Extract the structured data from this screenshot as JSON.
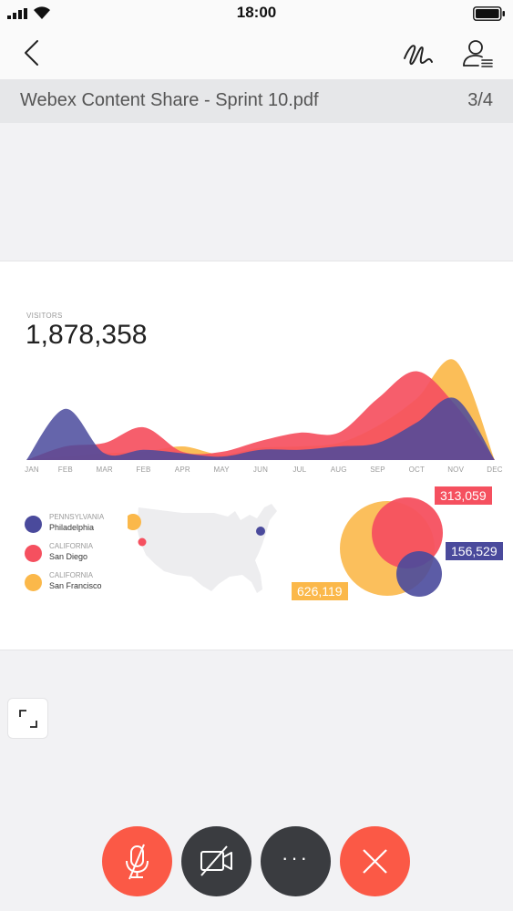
{
  "status_bar": {
    "time": "18:00"
  },
  "document": {
    "title": "Webex Content Share - Sprint 10.pdf",
    "page": "3/4"
  },
  "slide": {
    "visitors_label": "VISITORS",
    "visitors_value": "1,878,358",
    "legend": [
      {
        "state": "PENNSYLVANIA",
        "city": "Philadelphia",
        "color": "#4a4a9c"
      },
      {
        "state": "CALIFORNIA",
        "city": "San Diego",
        "color": "#f5505f"
      },
      {
        "state": "CALIFORNIA",
        "city": "San Francisco",
        "color": "#fbb84a"
      }
    ],
    "bubble_values": {
      "red": "313,059",
      "blue": "156,529",
      "orange": "626,119"
    }
  },
  "chart_data": {
    "type": "area",
    "categories": [
      "JAN",
      "FEB",
      "MAR",
      "FEB",
      "APR",
      "MAY",
      "JUN",
      "JUL",
      "AUG",
      "SEP",
      "OCT",
      "NOV",
      "DEC"
    ],
    "series": [
      {
        "color": "#fbb84a",
        "values": [
          0,
          5,
          10,
          12,
          20,
          8,
          18,
          20,
          25,
          50,
          90,
          145,
          0
        ]
      },
      {
        "color": "#f5505f",
        "values": [
          0,
          20,
          25,
          48,
          12,
          12,
          28,
          40,
          40,
          90,
          130,
          80,
          0
        ]
      },
      {
        "color": "#4a4a9c",
        "values": [
          0,
          75,
          10,
          15,
          10,
          5,
          15,
          15,
          20,
          25,
          55,
          90,
          0
        ]
      }
    ],
    "colors": {
      "orange": "#fbb84a",
      "red": "#f5505f",
      "blue": "#4a4a9c"
    }
  },
  "controls": {
    "mute_color": "#fb5946",
    "video_color": "#3a3c40",
    "more_label": "···",
    "end_color": "#fb5946"
  }
}
